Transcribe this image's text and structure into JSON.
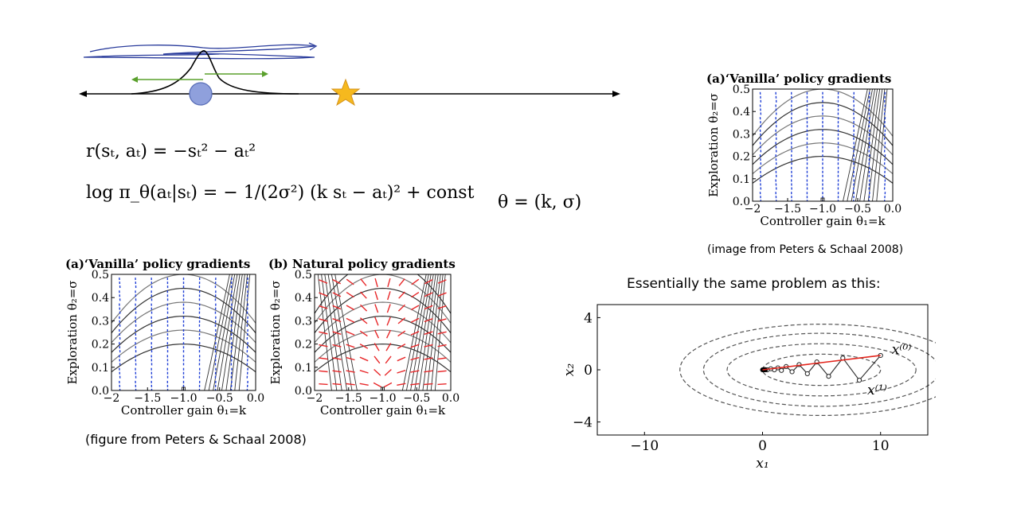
{
  "equations": {
    "reward": "r(sₜ, aₜ) = −sₜ² − aₜ²",
    "log_policy": "log π_θ(aₜ|sₜ) = − 1/(2σ²) (k sₜ − aₜ)² + const",
    "theta": "θ = (k, σ)"
  },
  "captions": {
    "top_right": "(image from Peters & Schaal 2008)",
    "bottom_left": "(figure from Peters & Schaal 2008)",
    "essentially": "Essentially the same problem as this:"
  },
  "chart_data": [
    {
      "type": "vector_field",
      "title": "(a)‘Vanilla’ policy gradients",
      "xlabel": "Controller gain θ₁=k",
      "ylabel": "Exploration θ₂=σ",
      "xlim": [
        -2,
        0
      ],
      "ylim": [
        0,
        0.5
      ],
      "xticks": [
        "−2",
        "−1.5",
        "−1.0",
        "−0.5",
        "0.0"
      ],
      "yticks": [
        "0.0",
        "0.1",
        "0.2",
        "0.3",
        "0.4",
        "0.5"
      ],
      "arrow_color": "#1f3fd6"
    },
    {
      "type": "vector_field",
      "title": "(a)‘Vanilla’ policy gradients",
      "xlabel": "Controller gain θ₁=k",
      "ylabel": "Exploration θ₂=σ",
      "xlim": [
        -2,
        0
      ],
      "ylim": [
        0,
        0.5
      ],
      "xticks": [
        "−2",
        "−1.5",
        "−1.0",
        "−0.5",
        "0.0"
      ],
      "yticks": [
        "0.0",
        "0.1",
        "0.2",
        "0.3",
        "0.4",
        "0.5"
      ],
      "arrow_color": "#1f3fd6"
    },
    {
      "type": "vector_field",
      "title": "(b) Natural policy gradients",
      "xlabel": "Controller gain θ₁=k",
      "ylabel": "Exploration θ₂=σ",
      "xlim": [
        -2,
        0
      ],
      "ylim": [
        0,
        0.5
      ],
      "xticks": [
        "−2",
        "−1.5",
        "−1.0",
        "−0.5",
        "0.0"
      ],
      "yticks": [
        "0.0",
        "0.1",
        "0.2",
        "0.3",
        "0.4",
        "0.5"
      ],
      "arrow_color": "#e8282a"
    },
    {
      "type": "line",
      "xlabel": "x₁",
      "ylabel": "x₂",
      "xlim": [
        -14,
        14
      ],
      "ylim": [
        -5,
        5
      ],
      "xticks": [
        "−10",
        "0",
        "10"
      ],
      "yticks": [
        "4",
        "0",
        "−4"
      ],
      "labels": [
        "x⁽⁰⁾",
        "x⁽¹⁾"
      ],
      "path": [
        [
          10,
          1.1
        ],
        [
          8.2,
          -0.8
        ],
        [
          6.8,
          0.9
        ],
        [
          5.6,
          -0.5
        ],
        [
          4.6,
          0.6
        ],
        [
          3.8,
          -0.3
        ],
        [
          3.1,
          0.4
        ],
        [
          2.5,
          -0.15
        ],
        [
          2.0,
          0.25
        ],
        [
          1.6,
          -0.05
        ],
        [
          1.3,
          0.15
        ],
        [
          1.0,
          0.0
        ],
        [
          0.7,
          0.08
        ],
        [
          0.4,
          0.0
        ],
        [
          0.2,
          0.02
        ],
        [
          0.05,
          0.0
        ]
      ],
      "steepest_line": [
        [
          10,
          1.1
        ],
        [
          0,
          0
        ]
      ]
    }
  ]
}
